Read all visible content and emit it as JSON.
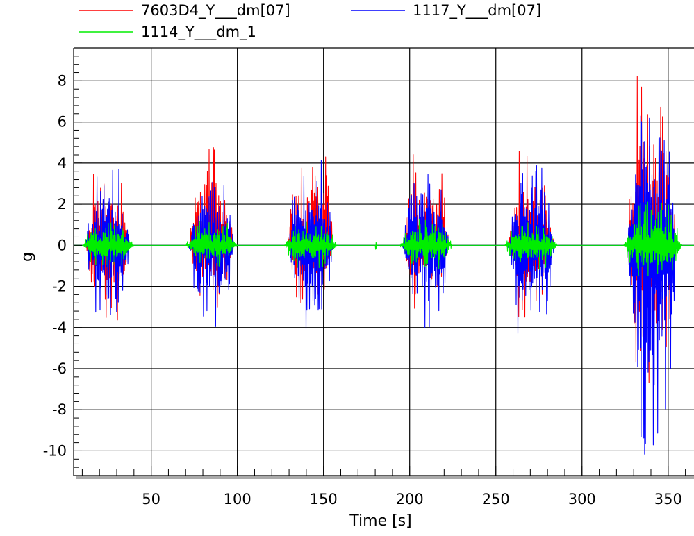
{
  "chart_data": {
    "type": "line",
    "title": "",
    "xlabel": "Time  [s]",
    "ylabel": "g",
    "xlim": [
      5,
      365
    ],
    "ylim": [
      -11.2,
      9.6
    ],
    "x_ticks": [
      50,
      100,
      150,
      200,
      250,
      300,
      350
    ],
    "x_tick_labels": [
      "50",
      "100",
      "150",
      "200",
      "250",
      "300",
      "350"
    ],
    "y_ticks": [
      8,
      6,
      4,
      2,
      0,
      -2,
      -4,
      -6,
      -8,
      -10
    ],
    "y_tick_labels": [
      "8",
      "6",
      "4",
      "2",
      "0",
      "-2",
      "-4",
      "-6",
      "-8",
      "-10"
    ],
    "grid": true,
    "legend_position": "top",
    "series": [
      {
        "name": "7603D4_Y___dm[07]",
        "color": "#ff0000",
        "bursts": [
          {
            "start": 12,
            "end": 38,
            "max": 4.5,
            "min": -3.8
          },
          {
            "start": 72,
            "end": 98,
            "max": 4.9,
            "min": -3.3
          },
          {
            "start": 129,
            "end": 156,
            "max": 5.1,
            "min": -3.0
          },
          {
            "start": 196,
            "end": 223,
            "max": 5.0,
            "min": -3.2
          },
          {
            "start": 257,
            "end": 284,
            "max": 4.6,
            "min": -3.6
          },
          {
            "start": 326,
            "end": 355,
            "max": 8.7,
            "min": -7.0
          }
        ]
      },
      {
        "name": "1117_Y___dm[07]",
        "color": "#0000ff",
        "bursts": [
          {
            "start": 12,
            "end": 38,
            "max": 3.8,
            "min": -3.6
          },
          {
            "start": 72,
            "end": 98,
            "max": 3.9,
            "min": -4.0
          },
          {
            "start": 129,
            "end": 156,
            "max": 4.3,
            "min": -4.2
          },
          {
            "start": 196,
            "end": 223,
            "max": 4.0,
            "min": -4.1
          },
          {
            "start": 257,
            "end": 284,
            "max": 3.9,
            "min": -4.4
          },
          {
            "start": 326,
            "end": 355,
            "max": 6.8,
            "min": -10.4
          }
        ]
      },
      {
        "name": "1114_Y___dm_1",
        "color": "#00ee00",
        "bursts": [
          {
            "start": 10,
            "end": 40,
            "max": 1.1,
            "min": -1.1
          },
          {
            "start": 70,
            "end": 100,
            "max": 1.2,
            "min": -1.1
          },
          {
            "start": 127,
            "end": 158,
            "max": 1.2,
            "min": -1.2
          },
          {
            "start": 180,
            "end": 181,
            "max": 0.35,
            "min": -0.35
          },
          {
            "start": 194,
            "end": 225,
            "max": 1.3,
            "min": -1.2
          },
          {
            "start": 255,
            "end": 286,
            "max": 1.2,
            "min": -1.2
          },
          {
            "start": 324,
            "end": 358,
            "max": 2.2,
            "min": -2.0
          }
        ]
      }
    ]
  }
}
